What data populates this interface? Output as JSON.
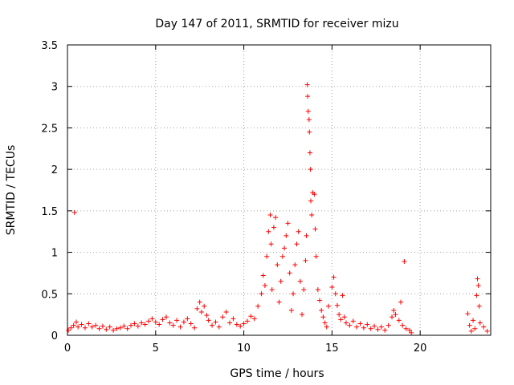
{
  "chart_data": {
    "type": "scatter",
    "title": "Day 147 of 2011, SRMTID for receiver mizu",
    "xlabel": "GPS time / hours",
    "ylabel": "SRMTID / TECUs",
    "xlim": [
      0,
      24
    ],
    "ylim": [
      0,
      3.5
    ],
    "x_ticks": [
      0,
      5,
      10,
      15,
      20
    ],
    "x_tick_labels": [
      "0",
      "5",
      "10",
      "15",
      "20"
    ],
    "y_ticks": [
      0,
      0.5,
      1,
      1.5,
      2,
      2.5,
      3,
      3.5
    ],
    "y_tick_labels": [
      "0",
      "0.5",
      "1",
      "1.5",
      "2",
      "2.5",
      "3",
      "3.5"
    ],
    "grid": true,
    "marker": "+",
    "color": "#ff0000",
    "series": [
      {
        "name": "SRMTID",
        "points": [
          [
            0.05,
            0.06
          ],
          [
            0.2,
            0.09
          ],
          [
            0.35,
            0.12
          ],
          [
            0.4,
            1.48
          ],
          [
            0.5,
            0.16
          ],
          [
            0.6,
            0.1
          ],
          [
            0.8,
            0.13
          ],
          [
            1.0,
            0.09
          ],
          [
            1.2,
            0.14
          ],
          [
            1.4,
            0.1
          ],
          [
            1.6,
            0.12
          ],
          [
            1.8,
            0.08
          ],
          [
            2.0,
            0.11
          ],
          [
            2.2,
            0.07
          ],
          [
            2.4,
            0.1
          ],
          [
            2.6,
            0.06
          ],
          [
            2.8,
            0.08
          ],
          [
            3.0,
            0.09
          ],
          [
            3.2,
            0.11
          ],
          [
            3.4,
            0.08
          ],
          [
            3.6,
            0.12
          ],
          [
            3.8,
            0.14
          ],
          [
            4.0,
            0.11
          ],
          [
            4.2,
            0.15
          ],
          [
            4.4,
            0.13
          ],
          [
            4.6,
            0.17
          ],
          [
            4.8,
            0.2
          ],
          [
            5.0,
            0.16
          ],
          [
            5.2,
            0.13
          ],
          [
            5.4,
            0.19
          ],
          [
            5.6,
            0.22
          ],
          [
            5.8,
            0.15
          ],
          [
            6.0,
            0.12
          ],
          [
            6.2,
            0.18
          ],
          [
            6.4,
            0.1
          ],
          [
            6.6,
            0.16
          ],
          [
            6.8,
            0.2
          ],
          [
            7.0,
            0.14
          ],
          [
            7.2,
            0.09
          ],
          [
            7.35,
            0.32
          ],
          [
            7.5,
            0.4
          ],
          [
            7.6,
            0.28
          ],
          [
            7.75,
            0.35
          ],
          [
            7.9,
            0.24
          ],
          [
            8.0,
            0.18
          ],
          [
            8.2,
            0.12
          ],
          [
            8.4,
            0.16
          ],
          [
            8.6,
            0.1
          ],
          [
            8.8,
            0.22
          ],
          [
            9.0,
            0.28
          ],
          [
            9.2,
            0.15
          ],
          [
            9.4,
            0.2
          ],
          [
            9.6,
            0.13
          ],
          [
            9.8,
            0.11
          ],
          [
            10.0,
            0.14
          ],
          [
            10.2,
            0.17
          ],
          [
            10.4,
            0.23
          ],
          [
            10.6,
            0.2
          ],
          [
            10.8,
            0.35
          ],
          [
            11.0,
            0.5
          ],
          [
            11.1,
            0.72
          ],
          [
            11.2,
            0.6
          ],
          [
            11.3,
            0.95
          ],
          [
            11.4,
            1.25
          ],
          [
            11.5,
            1.45
          ],
          [
            11.55,
            1.1
          ],
          [
            11.6,
            0.55
          ],
          [
            11.7,
            1.3
          ],
          [
            11.8,
            1.42
          ],
          [
            11.9,
            0.85
          ],
          [
            12.0,
            0.4
          ],
          [
            12.1,
            0.65
          ],
          [
            12.2,
            0.95
          ],
          [
            12.3,
            1.05
          ],
          [
            12.4,
            1.2
          ],
          [
            12.5,
            1.35
          ],
          [
            12.6,
            0.75
          ],
          [
            12.7,
            0.3
          ],
          [
            12.8,
            0.5
          ],
          [
            12.9,
            0.85
          ],
          [
            13.0,
            1.1
          ],
          [
            13.1,
            1.25
          ],
          [
            13.2,
            0.65
          ],
          [
            13.3,
            0.25
          ],
          [
            13.4,
            0.55
          ],
          [
            13.5,
            0.9
          ],
          [
            13.55,
            1.2
          ],
          [
            13.6,
            3.02
          ],
          [
            13.62,
            2.88
          ],
          [
            13.65,
            2.7
          ],
          [
            13.7,
            2.6
          ],
          [
            13.72,
            2.45
          ],
          [
            13.75,
            2.2
          ],
          [
            13.78,
            2.0
          ],
          [
            13.8,
            1.62
          ],
          [
            13.85,
            1.45
          ],
          [
            13.9,
            1.72
          ],
          [
            14.0,
            1.7
          ],
          [
            14.05,
            1.28
          ],
          [
            14.1,
            0.95
          ],
          [
            14.2,
            0.55
          ],
          [
            14.3,
            0.42
          ],
          [
            14.4,
            0.3
          ],
          [
            14.5,
            0.22
          ],
          [
            14.6,
            0.15
          ],
          [
            14.7,
            0.1
          ],
          [
            14.8,
            0.35
          ],
          [
            15.0,
            0.58
          ],
          [
            15.1,
            0.7
          ],
          [
            15.2,
            0.5
          ],
          [
            15.3,
            0.36
          ],
          [
            15.4,
            0.25
          ],
          [
            15.5,
            0.19
          ],
          [
            15.6,
            0.48
          ],
          [
            15.7,
            0.22
          ],
          [
            15.8,
            0.15
          ],
          [
            16.0,
            0.12
          ],
          [
            16.2,
            0.17
          ],
          [
            16.4,
            0.1
          ],
          [
            16.6,
            0.14
          ],
          [
            16.8,
            0.09
          ],
          [
            17.0,
            0.13
          ],
          [
            17.2,
            0.08
          ],
          [
            17.4,
            0.11
          ],
          [
            17.6,
            0.07
          ],
          [
            17.8,
            0.1
          ],
          [
            18.0,
            0.06
          ],
          [
            18.2,
            0.12
          ],
          [
            18.4,
            0.22
          ],
          [
            18.5,
            0.3
          ],
          [
            18.6,
            0.25
          ],
          [
            18.8,
            0.18
          ],
          [
            18.9,
            0.4
          ],
          [
            19.0,
            0.12
          ],
          [
            19.1,
            0.89
          ],
          [
            19.2,
            0.08
          ],
          [
            19.4,
            0.06
          ],
          [
            19.5,
            0.03
          ],
          [
            22.7,
            0.26
          ],
          [
            22.8,
            0.12
          ],
          [
            22.9,
            0.05
          ],
          [
            23.0,
            0.18
          ],
          [
            23.1,
            0.08
          ],
          [
            23.2,
            0.48
          ],
          [
            23.25,
            0.68
          ],
          [
            23.3,
            0.6
          ],
          [
            23.35,
            0.35
          ],
          [
            23.4,
            0.15
          ],
          [
            23.6,
            0.1
          ],
          [
            23.8,
            0.05
          ]
        ]
      }
    ]
  }
}
